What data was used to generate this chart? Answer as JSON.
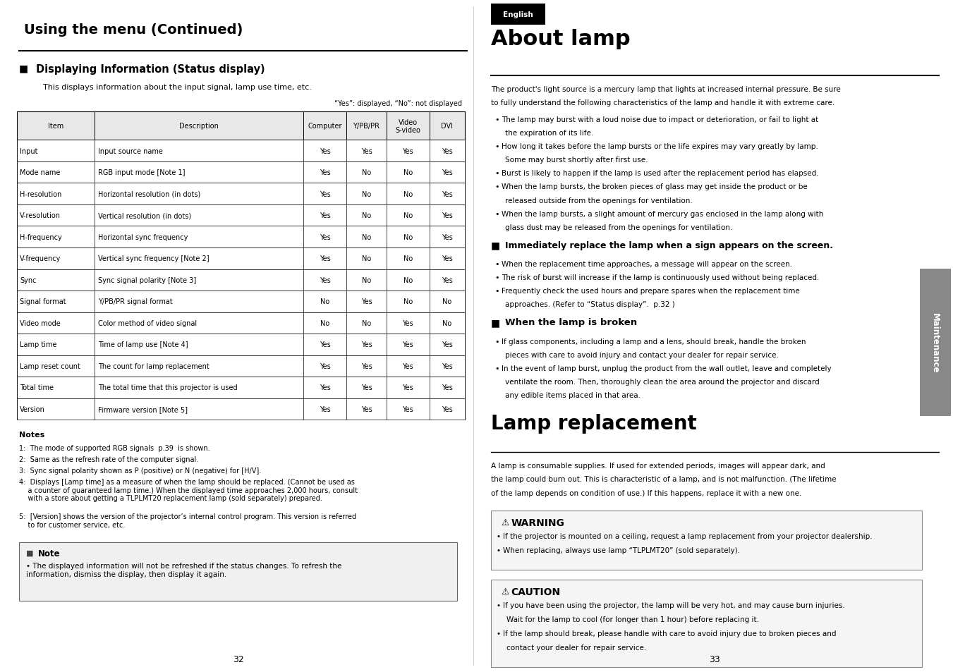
{
  "page_bg": "#ffffff",
  "left_page": {
    "main_title": "Using the menu (Continued)",
    "section_title": "Displaying Information (Status display)",
    "section_desc": "This displays information about the input signal, lamp use time, etc.",
    "table_note": "“Yes”: displayed, “No”: not displayed",
    "table_headers": [
      "Item",
      "Description",
      "Computer",
      "Y/PB/PR",
      "Video\nS-video",
      "DVI"
    ],
    "table_rows": [
      [
        "Input",
        "Input source name",
        "Yes",
        "Yes",
        "Yes",
        "Yes"
      ],
      [
        "Mode name",
        "RGB input mode [Note 1]",
        "Yes",
        "No",
        "No",
        "Yes"
      ],
      [
        "H-resolution",
        "Horizontal resolution (in dots)",
        "Yes",
        "No",
        "No",
        "Yes"
      ],
      [
        "V-resolution",
        "Vertical resolution (in dots)",
        "Yes",
        "No",
        "No",
        "Yes"
      ],
      [
        "H-frequency",
        "Horizontal sync frequency",
        "Yes",
        "No",
        "No",
        "Yes"
      ],
      [
        "V-frequency",
        "Vertical sync frequency [Note 2]",
        "Yes",
        "No",
        "No",
        "Yes"
      ],
      [
        "Sync",
        "Sync signal polarity [Note 3]",
        "Yes",
        "No",
        "No",
        "Yes"
      ],
      [
        "Signal format",
        "Y/PB/PR signal format",
        "No",
        "Yes",
        "No",
        "No"
      ],
      [
        "Video mode",
        "Color method of video signal",
        "No",
        "No",
        "Yes",
        "No"
      ],
      [
        "Lamp time",
        "Time of lamp use [Note 4]",
        "Yes",
        "Yes",
        "Yes",
        "Yes"
      ],
      [
        "Lamp reset count",
        "The count for lamp replacement",
        "Yes",
        "Yes",
        "Yes",
        "Yes"
      ],
      [
        "Total time",
        "The total time that this projector is used",
        "Yes",
        "Yes",
        "Yes",
        "Yes"
      ],
      [
        "Version",
        "Firmware version [Note 5]",
        "Yes",
        "Yes",
        "Yes",
        "Yes"
      ]
    ],
    "notes_title": "Notes",
    "notes": [
      "1:  The mode of supported RGB signals  p.39  is shown.",
      "2:  Same as the refresh rate of the computer signal.",
      "3:  Sync signal polarity shown as P (positive) or N (negative) for [H/V].",
      "4:  Displays [Lamp time] as a measure of when the lamp should be replaced. (Cannot be used as\n    a counter of guaranteed lamp time.) When the displayed time approaches 2,000 hours, consult\n    with a store about getting a TLPLMT20 replacement lamp (sold separately) prepared.",
      "5:  [Version] shows the version of the projector’s internal control program. This version is referred\n    to for customer service, etc."
    ],
    "note_box_title": "Note",
    "note_box_text": "The displayed information will not be refreshed if the status changes. To refresh the\ninformation, dismiss the display, then display it again.",
    "page_num": "32"
  },
  "right_page": {
    "english_badge": "English",
    "main_title": "About lamp",
    "intro_text": "The product's light source is a mercury lamp that lights at increased internal pressure. Be sure\nto fully understand the following characteristics of the lamp and handle it with extreme care.",
    "intro_bullets": [
      "The lamp may burst with a loud noise due to impact or deterioration, or fail to light at\nthe expiration of its life.",
      "How long it takes before the lamp bursts or the life expires may vary greatly by lamp.\nSome may burst shortly after first use.",
      "Burst is likely to happen if the lamp is used after the replacement period has elapsed.",
      "When the lamp bursts, the broken pieces of glass may get inside the product or be\nreleased outside from the openings for ventilation.",
      "When the lamp bursts, a slight amount of mercury gas enclosed in the lamp along with\nglass dust may be released from the openings for ventilation."
    ],
    "section1_title": "Immediately replace the lamp when a sign appears on the screen.",
    "section1_bullets": [
      "When the replacement time approaches, a message will appear on the screen.",
      "The risk of burst will increase if the lamp is continuously used without being replaced.",
      "Frequently check the used hours and prepare spares when the replacement time\napproaches. (Refer to “Status display”.  p.32 )"
    ],
    "section2_title": "When the lamp is broken",
    "section2_bullets": [
      "If glass components, including a lamp and a lens, should break, handle the broken\npieces with care to avoid injury and contact your dealer for repair service.",
      "In the event of lamp burst, unplug the product from the wall outlet, leave and completely\nventilate the room. Then, thoroughly clean the area around the projector and discard\nany edible items placed in that area."
    ],
    "lamp_replacement_title": "Lamp replacement",
    "lamp_replacement_text": "A lamp is consumable supplies. If used for extended periods, images will appear dark, and\nthe lamp could burn out. This is characteristic of a lamp, and is not malfunction. (The lifetime\nof the lamp depends on condition of use.) If this happens, replace it with a new one.",
    "warning_title": "WARNING",
    "warning_bullets": [
      "If the projector is mounted on a ceiling, request a lamp replacement from your projector dealership.",
      "When replacing, always use lamp “TLPLMT20” (sold separately)."
    ],
    "caution_title": "CAUTION",
    "caution_bullets": [
      "If you have been using the projector, the lamp will be very hot, and may cause burn injuries.\nWait for the lamp to cool (for longer than 1 hour) before replacing it.",
      "If the lamp should break, please handle with care to avoid injury due to broken pieces and\ncontact your dealer for repair service."
    ],
    "page_num": "33",
    "maintenance_label": "Maintenance"
  }
}
